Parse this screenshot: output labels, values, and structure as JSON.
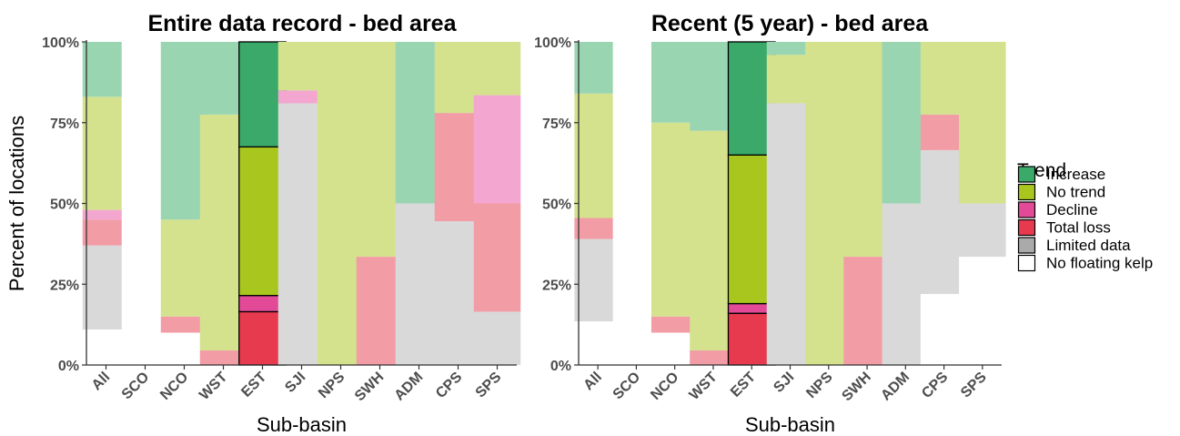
{
  "legend": {
    "title": "Trend",
    "position": "right",
    "items": [
      {
        "key": "increase",
        "label": "Increase",
        "color": "#3aa96a"
      },
      {
        "key": "no_trend",
        "label": "No trend",
        "color": "#a8c61e"
      },
      {
        "key": "decline",
        "label": "Decline",
        "color": "#e24a98"
      },
      {
        "key": "total_loss",
        "label": "Total loss",
        "color": "#e83a4f"
      },
      {
        "key": "limited_data",
        "label": "Limited data",
        "color": "#aaaaaa"
      },
      {
        "key": "no_floating_kelp",
        "label": "No floating kelp",
        "color": "#ffffff"
      }
    ]
  },
  "faded_colors": {
    "increase": "#9ad5b2",
    "no_trend": "#d4e28e",
    "decline": "#f3a6cf",
    "total_loss": "#f29ca6",
    "limited_data": "#d9d9d9",
    "no_floating_kelp": "#ffffff"
  },
  "chart_data": [
    {
      "type": "bar",
      "stacked": true,
      "title": "Entire data record - bed area",
      "xlabel": "Sub-basin",
      "ylabel": "Percent of locations",
      "ylim": [
        0,
        100
      ],
      "yticks": [
        "0%",
        "25%",
        "50%",
        "75%",
        "100%"
      ],
      "categories": [
        "All",
        "SCO",
        "NCO",
        "WST",
        "EST",
        "SJI",
        "NPS",
        "SWH",
        "ADM",
        "CPS",
        "SPS"
      ],
      "highlighted_category": "EST",
      "series": [
        {
          "key": "no_floating_kelp",
          "values": [
            11,
            100,
            10,
            0,
            0,
            0,
            0,
            0,
            0,
            0,
            0
          ]
        },
        {
          "key": "limited_data",
          "values": [
            26,
            0,
            0,
            0,
            0,
            81,
            0,
            0,
            50,
            44.5,
            16.5
          ]
        },
        {
          "key": "total_loss",
          "values": [
            8,
            0,
            5,
            4.5,
            16.5,
            0,
            0,
            33.5,
            0,
            33.5,
            33.5
          ]
        },
        {
          "key": "decline",
          "values": [
            3,
            0,
            0,
            0,
            5,
            4,
            0,
            0,
            0,
            0,
            33.5
          ]
        },
        {
          "key": "no_trend",
          "values": [
            35,
            0,
            30,
            73,
            46,
            15,
            100,
            66.5,
            0,
            22,
            16.5
          ]
        },
        {
          "key": "increase",
          "values": [
            17,
            0,
            55,
            22.5,
            32.5,
            0,
            0,
            0,
            50,
            0,
            0
          ]
        }
      ]
    },
    {
      "type": "bar",
      "stacked": true,
      "title": "Recent (5 year) - bed area",
      "xlabel": "Sub-basin",
      "ylabel": "",
      "ylim": [
        0,
        100
      ],
      "yticks": [
        "0%",
        "25%",
        "50%",
        "75%",
        "100%"
      ],
      "categories": [
        "All",
        "SCO",
        "NCO",
        "WST",
        "EST",
        "SJI",
        "NPS",
        "SWH",
        "ADM",
        "CPS",
        "SPS"
      ],
      "highlighted_category": "EST",
      "series": [
        {
          "key": "no_floating_kelp",
          "values": [
            13.5,
            100,
            10,
            0,
            0,
            0,
            0,
            0,
            0,
            22,
            33.5
          ]
        },
        {
          "key": "limited_data",
          "values": [
            25.5,
            0,
            0,
            0,
            0,
            81,
            0,
            0,
            50,
            44.5,
            16.5
          ]
        },
        {
          "key": "total_loss",
          "values": [
            6.5,
            0,
            5,
            4.5,
            16,
            0,
            0,
            33.5,
            0,
            11,
            0
          ]
        },
        {
          "key": "decline",
          "values": [
            0,
            0,
            0,
            0,
            3,
            0,
            0,
            0,
            0,
            0,
            0
          ]
        },
        {
          "key": "no_trend",
          "values": [
            38.5,
            0,
            60,
            68,
            46,
            15,
            100,
            66.5,
            0,
            22.5,
            50
          ]
        },
        {
          "key": "increase",
          "values": [
            16,
            0,
            25,
            27.5,
            35,
            4,
            0,
            0,
            50,
            0,
            0
          ]
        }
      ]
    }
  ]
}
